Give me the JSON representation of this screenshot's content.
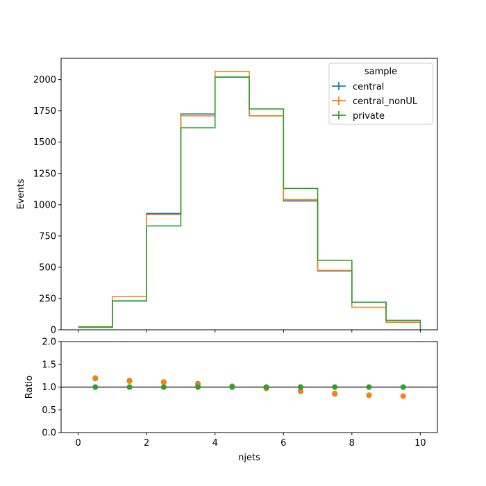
{
  "chart_data": [
    {
      "type": "line",
      "drawstyle": "step",
      "xlabel": "",
      "ylabel": "Events",
      "xlim": [
        -0.5,
        10.5
      ],
      "ylim": [
        0,
        2170
      ],
      "bin_edges": [
        0,
        1,
        2,
        3,
        4,
        5,
        6,
        7,
        8,
        9,
        10
      ],
      "xticks": [
        0,
        2,
        4,
        6,
        8,
        10
      ],
      "yticks": [
        0,
        250,
        500,
        750,
        1000,
        1250,
        1500,
        1750,
        2000
      ],
      "xtick_labels_visible": false,
      "legend": {
        "title": "sample",
        "placement": "top-right"
      },
      "series": [
        {
          "name": "central",
          "color": "#1f77b4",
          "values": [
            20,
            230,
            930,
            1725,
            2020,
            1710,
            1030,
            470,
            220,
            75
          ]
        },
        {
          "name": "central_nonUL",
          "color": "#ff7f0e",
          "values": [
            25,
            265,
            920,
            1710,
            2065,
            1710,
            1040,
            475,
            180,
            60
          ]
        },
        {
          "name": "private",
          "color": "#2ca02c",
          "values": [
            22,
            232,
            830,
            1615,
            2020,
            1765,
            1130,
            555,
            220,
            75
          ]
        }
      ]
    },
    {
      "type": "scatter",
      "xlabel": "njets",
      "ylabel": "Ratio",
      "xlim": [
        -0.5,
        10.5
      ],
      "ylim": [
        0,
        2
      ],
      "xticks": [
        0,
        2,
        4,
        6,
        8,
        10
      ],
      "yticks": [
        0.0,
        0.5,
        1.0,
        1.5,
        2.0
      ],
      "reference_line": 1.0,
      "x": [
        0.5,
        1.5,
        2.5,
        3.5,
        4.5,
        5.5,
        6.5,
        7.5,
        8.5,
        9.5
      ],
      "series": [
        {
          "name": "central",
          "color": "#1f77b4",
          "values": [
            1.19,
            1.14,
            1.11,
            1.07,
            1.01,
            0.97,
            0.91,
            0.85,
            0.82,
            0.8
          ]
        },
        {
          "name": "central_nonUL",
          "color": "#ff7f0e",
          "values": [
            1.2,
            1.13,
            1.11,
            1.06,
            1.02,
            0.97,
            0.92,
            0.86,
            0.82,
            0.8
          ]
        },
        {
          "name": "private",
          "color": "#2ca02c",
          "values": [
            1.0,
            1.0,
            1.0,
            1.0,
            1.0,
            1.0,
            1.0,
            1.0,
            1.0,
            1.0
          ]
        }
      ]
    }
  ]
}
